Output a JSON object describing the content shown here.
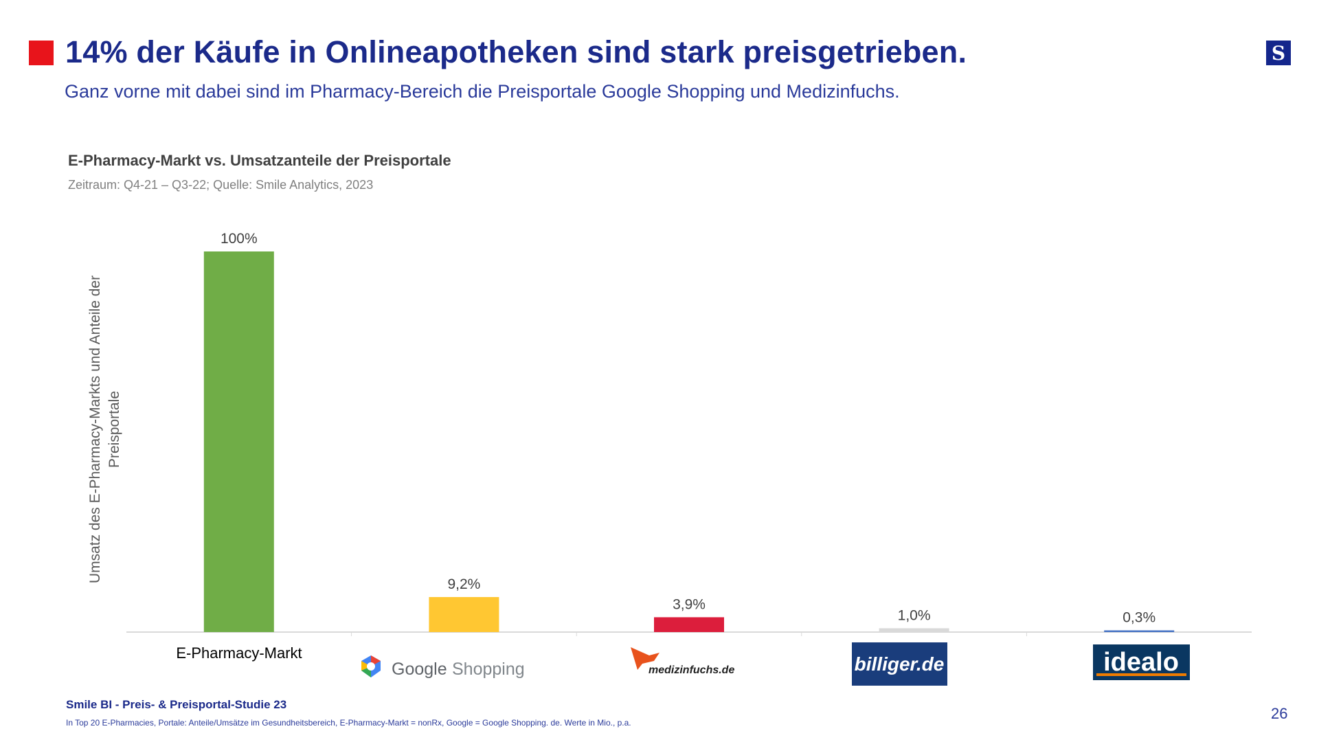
{
  "header": {
    "title": "14% der Käufe in Onlineapotheken sind stark preisgetrieben.",
    "subtitle": "Ganz vorne mit dabei sind im Pharmacy-Bereich die Preisportale Google Shopping und Medizinfuchs.",
    "accent_color": "#e8141b",
    "logo_letter": "S"
  },
  "chart_data": {
    "type": "bar",
    "title": "E-Pharmacy-Markt vs. Umsatzanteile der Preisportale",
    "subtitle": "Zeitraum: Q4-21 – Q3-22; Quelle: Smile Analytics, 2023",
    "ylabel": "Umsatz des E-Pharmacy-Markts und Anteile der Preisportale",
    "xlabel": "",
    "categories": [
      "E-Pharmacy-Markt",
      "Google Shopping",
      "medizinfuchs.de",
      "billiger.de",
      "idealo"
    ],
    "values": [
      100,
      9.2,
      3.9,
      1.0,
      0.3
    ],
    "data_labels": [
      "100%",
      "9,2%",
      "3,9%",
      "1,0%",
      "0,3%"
    ],
    "colors": [
      "#70ad47",
      "#ffc732",
      "#dc1e3c",
      "#d9d9d9",
      "#4472c4"
    ],
    "ylim": [
      0,
      100
    ],
    "grid": false
  },
  "logos": {
    "google_word": "Google",
    "shopping_word": "Shopping",
    "medizinfuchs": "medizinfuchs.de",
    "billiger": "billiger.de",
    "idealo": "idealo"
  },
  "footer": {
    "study": "Smile BI - Preis- & Preisportal-Studie 23",
    "note": "In Top 20 E-Pharmacies, Portale: Anteile/Umsätze im Gesundheitsbereich, E-Pharmacy-Markt = nonRx, Google = Google Shopping. de. Werte in Mio., p.a.",
    "page": "26"
  }
}
